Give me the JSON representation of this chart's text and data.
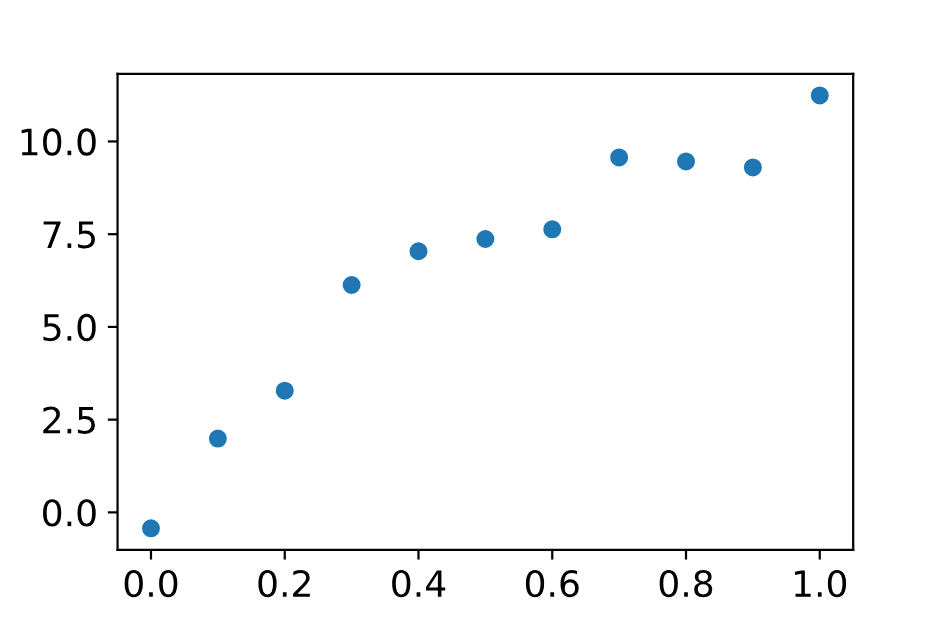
{
  "chart_data": {
    "type": "scatter",
    "x": [
      0.0,
      0.1,
      0.2,
      0.3,
      0.4,
      0.5,
      0.6,
      0.7,
      0.8,
      0.9,
      1.0
    ],
    "series": [
      {
        "color": "#1f77b4",
        "values": [
          -0.43,
          1.99,
          3.28,
          6.13,
          7.04,
          7.37,
          7.63,
          9.57,
          9.46,
          9.3,
          11.24
        ]
      }
    ],
    "xlim": [
      -0.05,
      1.05
    ],
    "ylim": [
      -1.01,
      11.82
    ],
    "xticks": [
      {
        "value": 0,
        "label": "0.0"
      },
      0.2,
      0.4,
      0.6,
      0.8,
      {
        "value": 1,
        "label": "1.0"
      }
    ],
    "yticks": [
      {
        "value": 0,
        "label": "0.0"
      },
      2.5,
      {
        "value": 5,
        "label": "5.0"
      },
      7.5,
      {
        "value": 10,
        "label": "10.0"
      }
    ],
    "marker": "circle",
    "grid": false,
    "legend": false
  }
}
